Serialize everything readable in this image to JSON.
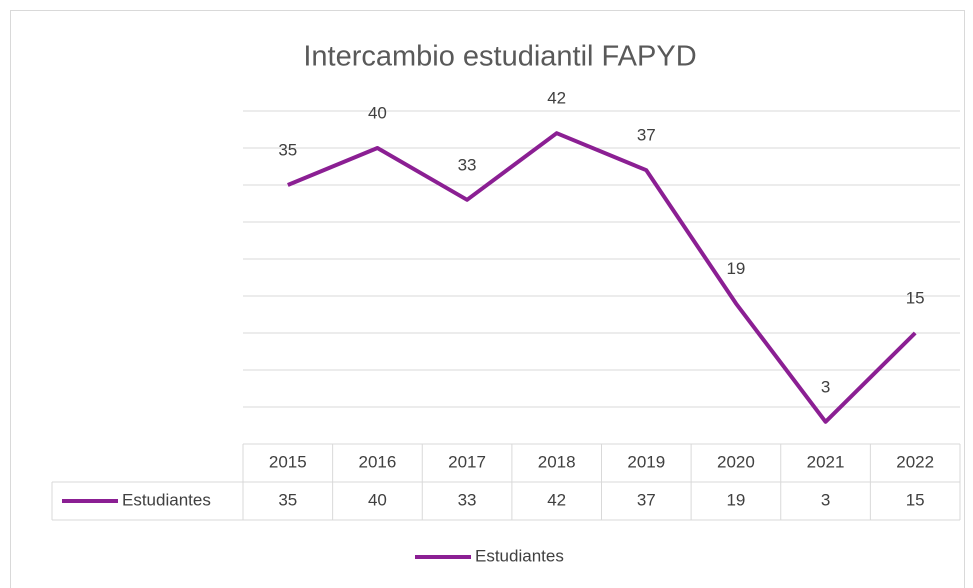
{
  "chart_data": {
    "type": "line",
    "title": "Intercambio estudiantil FAPYD",
    "categories": [
      "2015",
      "2016",
      "2017",
      "2018",
      "2019",
      "2020",
      "2021",
      "2022"
    ],
    "series": [
      {
        "name": "Estudiantes",
        "color": "#8b1f93",
        "values": [
          35,
          40,
          33,
          42,
          37,
          19,
          3,
          15
        ]
      }
    ],
    "ylim": [
      0,
      45
    ],
    "yticks": [
      0,
      5,
      10,
      15,
      20,
      25,
      30,
      35,
      40,
      45
    ],
    "ytick_labels": false,
    "grid": true,
    "data_labels": true,
    "data_table": true,
    "legend": "bottom"
  }
}
